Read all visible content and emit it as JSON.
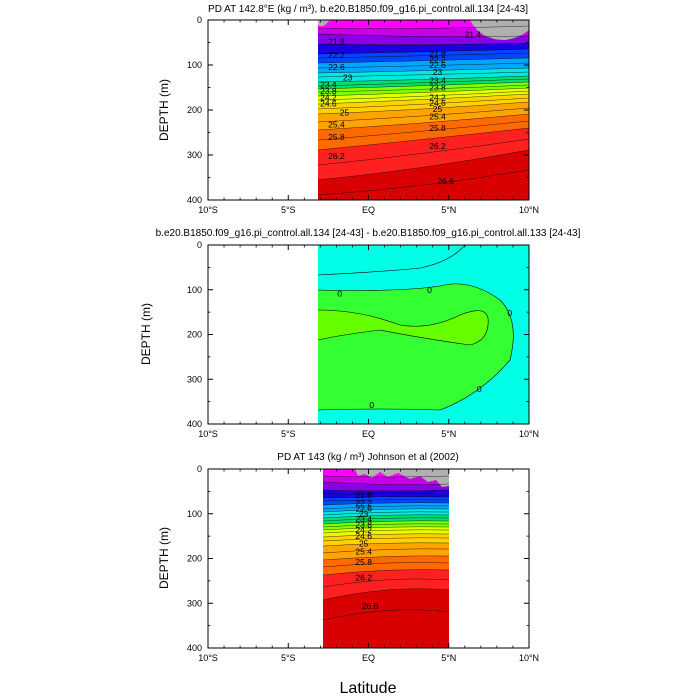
{
  "figure": {
    "xlabel": "Latitude",
    "x_ticks": [
      "10°S",
      "5°S",
      "EQ",
      "5°N",
      "10°N"
    ],
    "y_ticks": [
      "0",
      "100",
      "200",
      "300",
      "400"
    ]
  },
  "chart_data": [
    {
      "type": "heatmap",
      "title": "PD AT 142.8°E (kg / m³), b.e20.B1850.f09_g16.pi_control.all.134 [24-43]",
      "ylabel": "DEPTH (m)",
      "xlim": [
        -10,
        10
      ],
      "ylim": [
        400,
        0
      ],
      "data_lat_range": [
        -3,
        10
      ],
      "contour_labels": [
        {
          "lat": -2,
          "depth": 48,
          "text": "21.8"
        },
        {
          "lat": -2,
          "depth": 78,
          "text": "22.2"
        },
        {
          "lat": -2,
          "depth": 104,
          "text": "22.6"
        },
        {
          "lat": -1.3,
          "depth": 128,
          "text": "23"
        },
        {
          "lat": -2.5,
          "depth": 143,
          "text": "23.4"
        },
        {
          "lat": -2.5,
          "depth": 158,
          "text": "23.8"
        },
        {
          "lat": -2.5,
          "depth": 172,
          "text": "24.2"
        },
        {
          "lat": -2.5,
          "depth": 186,
          "text": "24.6"
        },
        {
          "lat": -1.5,
          "depth": 206,
          "text": "25"
        },
        {
          "lat": -2,
          "depth": 232,
          "text": "25.4"
        },
        {
          "lat": -2,
          "depth": 260,
          "text": "25.8"
        },
        {
          "lat": -2,
          "depth": 302,
          "text": "26.2"
        },
        {
          "lat": 4.3,
          "depth": 74,
          "text": "21.8"
        },
        {
          "lat": 4.3,
          "depth": 88,
          "text": "22.2"
        },
        {
          "lat": 4.3,
          "depth": 100,
          "text": "22.6"
        },
        {
          "lat": 4.3,
          "depth": 116,
          "text": "23"
        },
        {
          "lat": 4.3,
          "depth": 134,
          "text": "23.4"
        },
        {
          "lat": 4.3,
          "depth": 150,
          "text": "23.8"
        },
        {
          "lat": 4.3,
          "depth": 172,
          "text": "24.2"
        },
        {
          "lat": 4.3,
          "depth": 184,
          "text": "24.6"
        },
        {
          "lat": 4.3,
          "depth": 198,
          "text": "25"
        },
        {
          "lat": 4.3,
          "depth": 214,
          "text": "25.4"
        },
        {
          "lat": 4.3,
          "depth": 240,
          "text": "25.8"
        },
        {
          "lat": 4.3,
          "depth": 280,
          "text": "26.2"
        },
        {
          "lat": 4.8,
          "depth": 358,
          "text": "26.6"
        },
        {
          "lat": 6.5,
          "depth": 32,
          "text": "21.4"
        }
      ]
    },
    {
      "type": "heatmap",
      "title": "b.e20.B1850.f09_g16.pi_control.all.134 [24-43] - b.e20.B1850.f09_g16.pi_control.all.133 [24-43]",
      "ylabel": "DEPTH (m)",
      "xlim": [
        -10,
        10
      ],
      "ylim": [
        400,
        0
      ],
      "data_lat_range": [
        -3,
        10
      ],
      "contour_labels": [
        {
          "lat": -1.8,
          "depth": 108,
          "text": "0"
        },
        {
          "lat": 3.8,
          "depth": 100,
          "text": "0"
        },
        {
          "lat": 8.8,
          "depth": 152,
          "text": "0"
        },
        {
          "lat": 6.9,
          "depth": 322,
          "text": "0"
        },
        {
          "lat": 0.2,
          "depth": 358,
          "text": "0"
        }
      ]
    },
    {
      "type": "heatmap",
      "title": "PD AT 143 (kg / m³) Johnson et al (2002)",
      "ylabel": "DEPTH (m)",
      "xlim": [
        -10,
        10
      ],
      "ylim": [
        400,
        0
      ],
      "data_lat_range": [
        -2.7,
        5
      ],
      "contour_labels": [
        {
          "lat": -0.3,
          "depth": 58,
          "text": "21.8"
        },
        {
          "lat": -0.3,
          "depth": 76,
          "text": "22.2"
        },
        {
          "lat": -0.3,
          "depth": 88,
          "text": "22.6"
        },
        {
          "lat": -0.3,
          "depth": 100,
          "text": "23"
        },
        {
          "lat": -0.3,
          "depth": 112,
          "text": "23.4"
        },
        {
          "lat": -0.3,
          "depth": 124,
          "text": "23.8"
        },
        {
          "lat": -0.3,
          "depth": 136,
          "text": "24.2"
        },
        {
          "lat": -0.3,
          "depth": 150,
          "text": "24.6"
        },
        {
          "lat": -0.3,
          "depth": 166,
          "text": "25"
        },
        {
          "lat": -0.3,
          "depth": 184,
          "text": "25.4"
        },
        {
          "lat": -0.3,
          "depth": 208,
          "text": "25.8"
        },
        {
          "lat": -0.3,
          "depth": 242,
          "text": "26.2"
        },
        {
          "lat": 0.1,
          "depth": 306,
          "text": "26.6"
        }
      ]
    }
  ]
}
